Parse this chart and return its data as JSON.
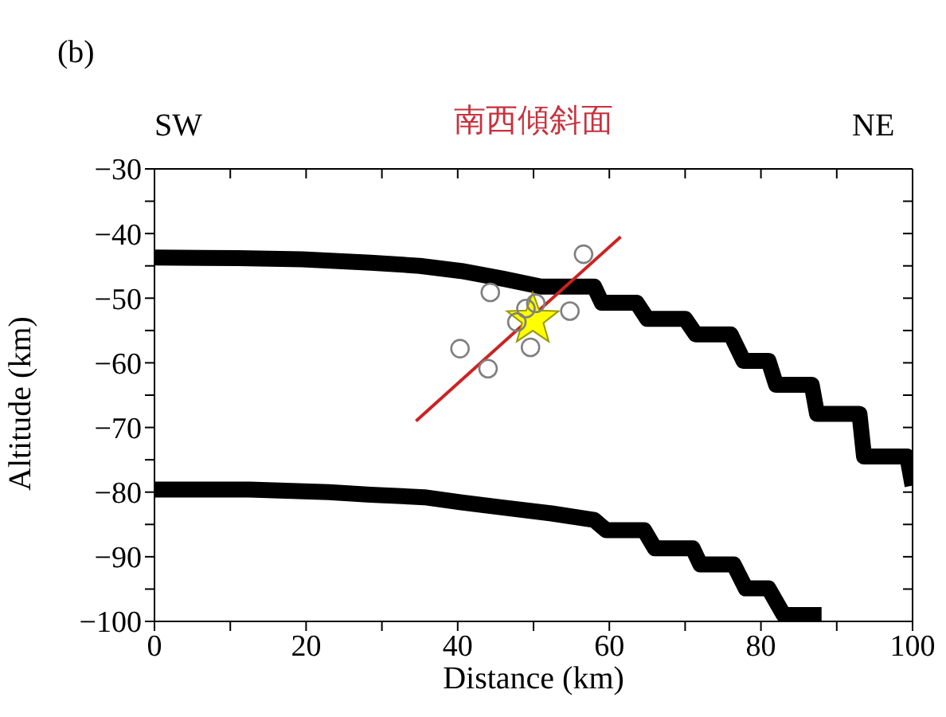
{
  "chart_data": {
    "type": "line",
    "title": "南西傾斜面",
    "xlabel": "Distance (km)",
    "ylabel": "Altitude (km)",
    "annotations": [
      "(b)",
      "SW",
      "NE"
    ],
    "xlim": [
      0,
      100
    ],
    "ylim": [
      -100,
      -30
    ],
    "xticks": [
      0,
      {
        "value": 10,
        "label": null
      },
      20,
      {
        "value": 30,
        "label": null
      },
      40,
      {
        "value": 50,
        "label": null
      },
      60,
      {
        "value": 70,
        "label": null
      },
      80,
      {
        "value": 90,
        "label": null
      },
      100
    ],
    "yticks": [
      -100,
      {
        "value": -95,
        "label": null
      },
      -90,
      {
        "value": -85,
        "label": null
      },
      -80,
      {
        "value": -75,
        "label": null
      },
      -70,
      {
        "value": -65,
        "label": null
      },
      -60,
      {
        "value": -55,
        "label": null
      },
      -50,
      {
        "value": -45,
        "label": null
      },
      -40,
      {
        "value": -35,
        "label": null
      },
      -30
    ],
    "series": [
      {
        "color": "#000000",
        "marker": "none",
        "x": [
          0,
          11,
          19.5,
          28.5,
          35,
          40.5,
          46,
          51,
          58,
          59,
          63.6,
          65,
          70,
          71.4,
          76,
          77.7,
          81,
          82,
          86.7,
          87.4,
          93,
          93.6,
          99.3,
          100
        ],
        "values": [
          -43.7,
          -43.8,
          -44,
          -44.5,
          -45,
          -45.8,
          -47,
          -48.2,
          -48.2,
          -50.7,
          -50.7,
          -53.2,
          -53.2,
          -55.6,
          -55.6,
          -59.7,
          -59.7,
          -63.4,
          -63.4,
          -67.9,
          -67.9,
          -74.5,
          -74.5,
          -79
        ]
      },
      {
        "color": "#000000",
        "marker": "none",
        "x": [
          0,
          12.5,
          23,
          28.5,
          35.6,
          40.5,
          46,
          52.4,
          58,
          59.6,
          64.6,
          66,
          71,
          72,
          76.4,
          78,
          81,
          83,
          88
        ],
        "values": [
          -79.6,
          -79.6,
          -80,
          -80.4,
          -80.8,
          -81.6,
          -82.4,
          -83.3,
          -84.3,
          -85.9,
          -85.9,
          -88.7,
          -88.7,
          -91.2,
          -91.2,
          -94.9,
          -94.9,
          -99,
          -99
        ]
      },
      {
        "color": "#cc2222",
        "marker": "none",
        "x": [
          34.5,
          61.5
        ],
        "values": [
          -69,
          -40.5
        ]
      },
      {
        "type": "scatter",
        "color": "#ffff00",
        "marker": "star",
        "x": [
          49.9
        ],
        "values": [
          -53.3
        ]
      },
      {
        "type": "scatter",
        "color": "#808080",
        "marker": "circle",
        "x": [
          56.6,
          44.3,
          54.8,
          47.8,
          50.3,
          49,
          49.6,
          40.3,
          44
        ],
        "values": [
          -43.2,
          -49.1,
          -52,
          -53.7,
          -50.8,
          -51.6,
          -57.6,
          -57.8,
          -60.9
        ]
      }
    ]
  }
}
